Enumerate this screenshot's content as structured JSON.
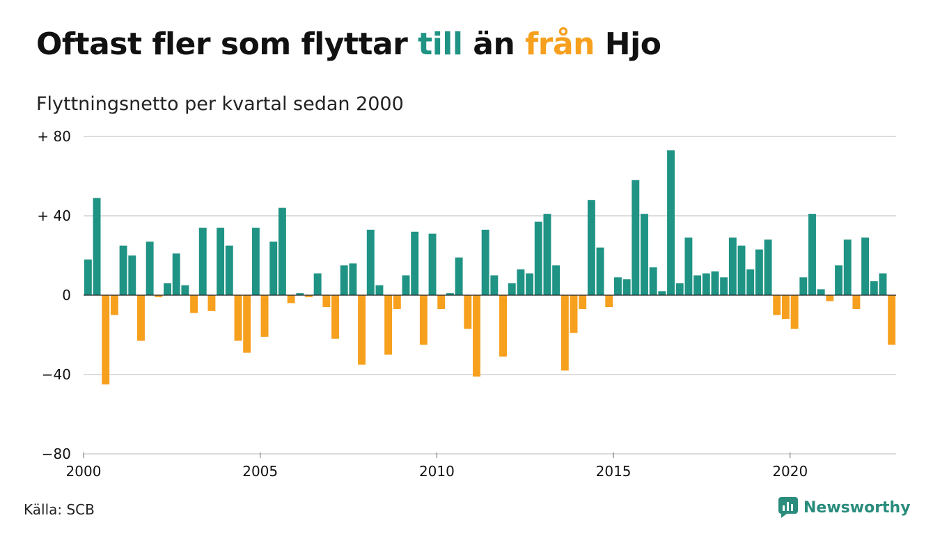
{
  "title": {
    "part1": "Oftast fler som flyttar ",
    "part2": "till",
    "part3": " än ",
    "part4": "från",
    "part5": " Hjo"
  },
  "subtitle": "Flyttningsnetto per kvartal sedan 2000",
  "source": "Källa: SCB",
  "brand": "Newsworthy",
  "colors": {
    "positive": "#1f9384",
    "negative": "#f6a01e",
    "grid": "#dddddd",
    "brand": "#2a8c7c"
  },
  "chart_data": {
    "type": "bar",
    "x_start": 2000,
    "periods_per_year": 4,
    "ylim": [
      -80,
      80
    ],
    "yticks": [
      80,
      40,
      0,
      -40,
      -80
    ],
    "ytick_labels": [
      "+ 80",
      "+ 40",
      "0",
      "−40",
      "−80"
    ],
    "xticks": [
      2000,
      2005,
      2010,
      2015,
      2020
    ],
    "xtick_labels": [
      "2000",
      "2005",
      "2010",
      "2015",
      "2020"
    ],
    "values": [
      18,
      49,
      -45,
      -10,
      25,
      20,
      -23,
      27,
      -1,
      6,
      21,
      5,
      -9,
      34,
      -8,
      34,
      25,
      -23,
      -29,
      34,
      -21,
      27,
      44,
      -4,
      1,
      -1,
      11,
      -6,
      -22,
      15,
      16,
      -35,
      33,
      5,
      -30,
      -7,
      10,
      32,
      -25,
      31,
      -7,
      1,
      19,
      -17,
      -41,
      33,
      10,
      -31,
      6,
      13,
      11,
      37,
      41,
      15,
      -38,
      -19,
      -7,
      48,
      24,
      -6,
      9,
      8,
      58,
      41,
      14,
      2,
      73,
      6,
      29,
      10,
      11,
      12,
      9,
      29,
      25,
      13,
      23,
      28,
      -10,
      -12,
      -17,
      9,
      41,
      3,
      -3,
      15,
      28,
      -7,
      29,
      7,
      11,
      -25
    ]
  }
}
